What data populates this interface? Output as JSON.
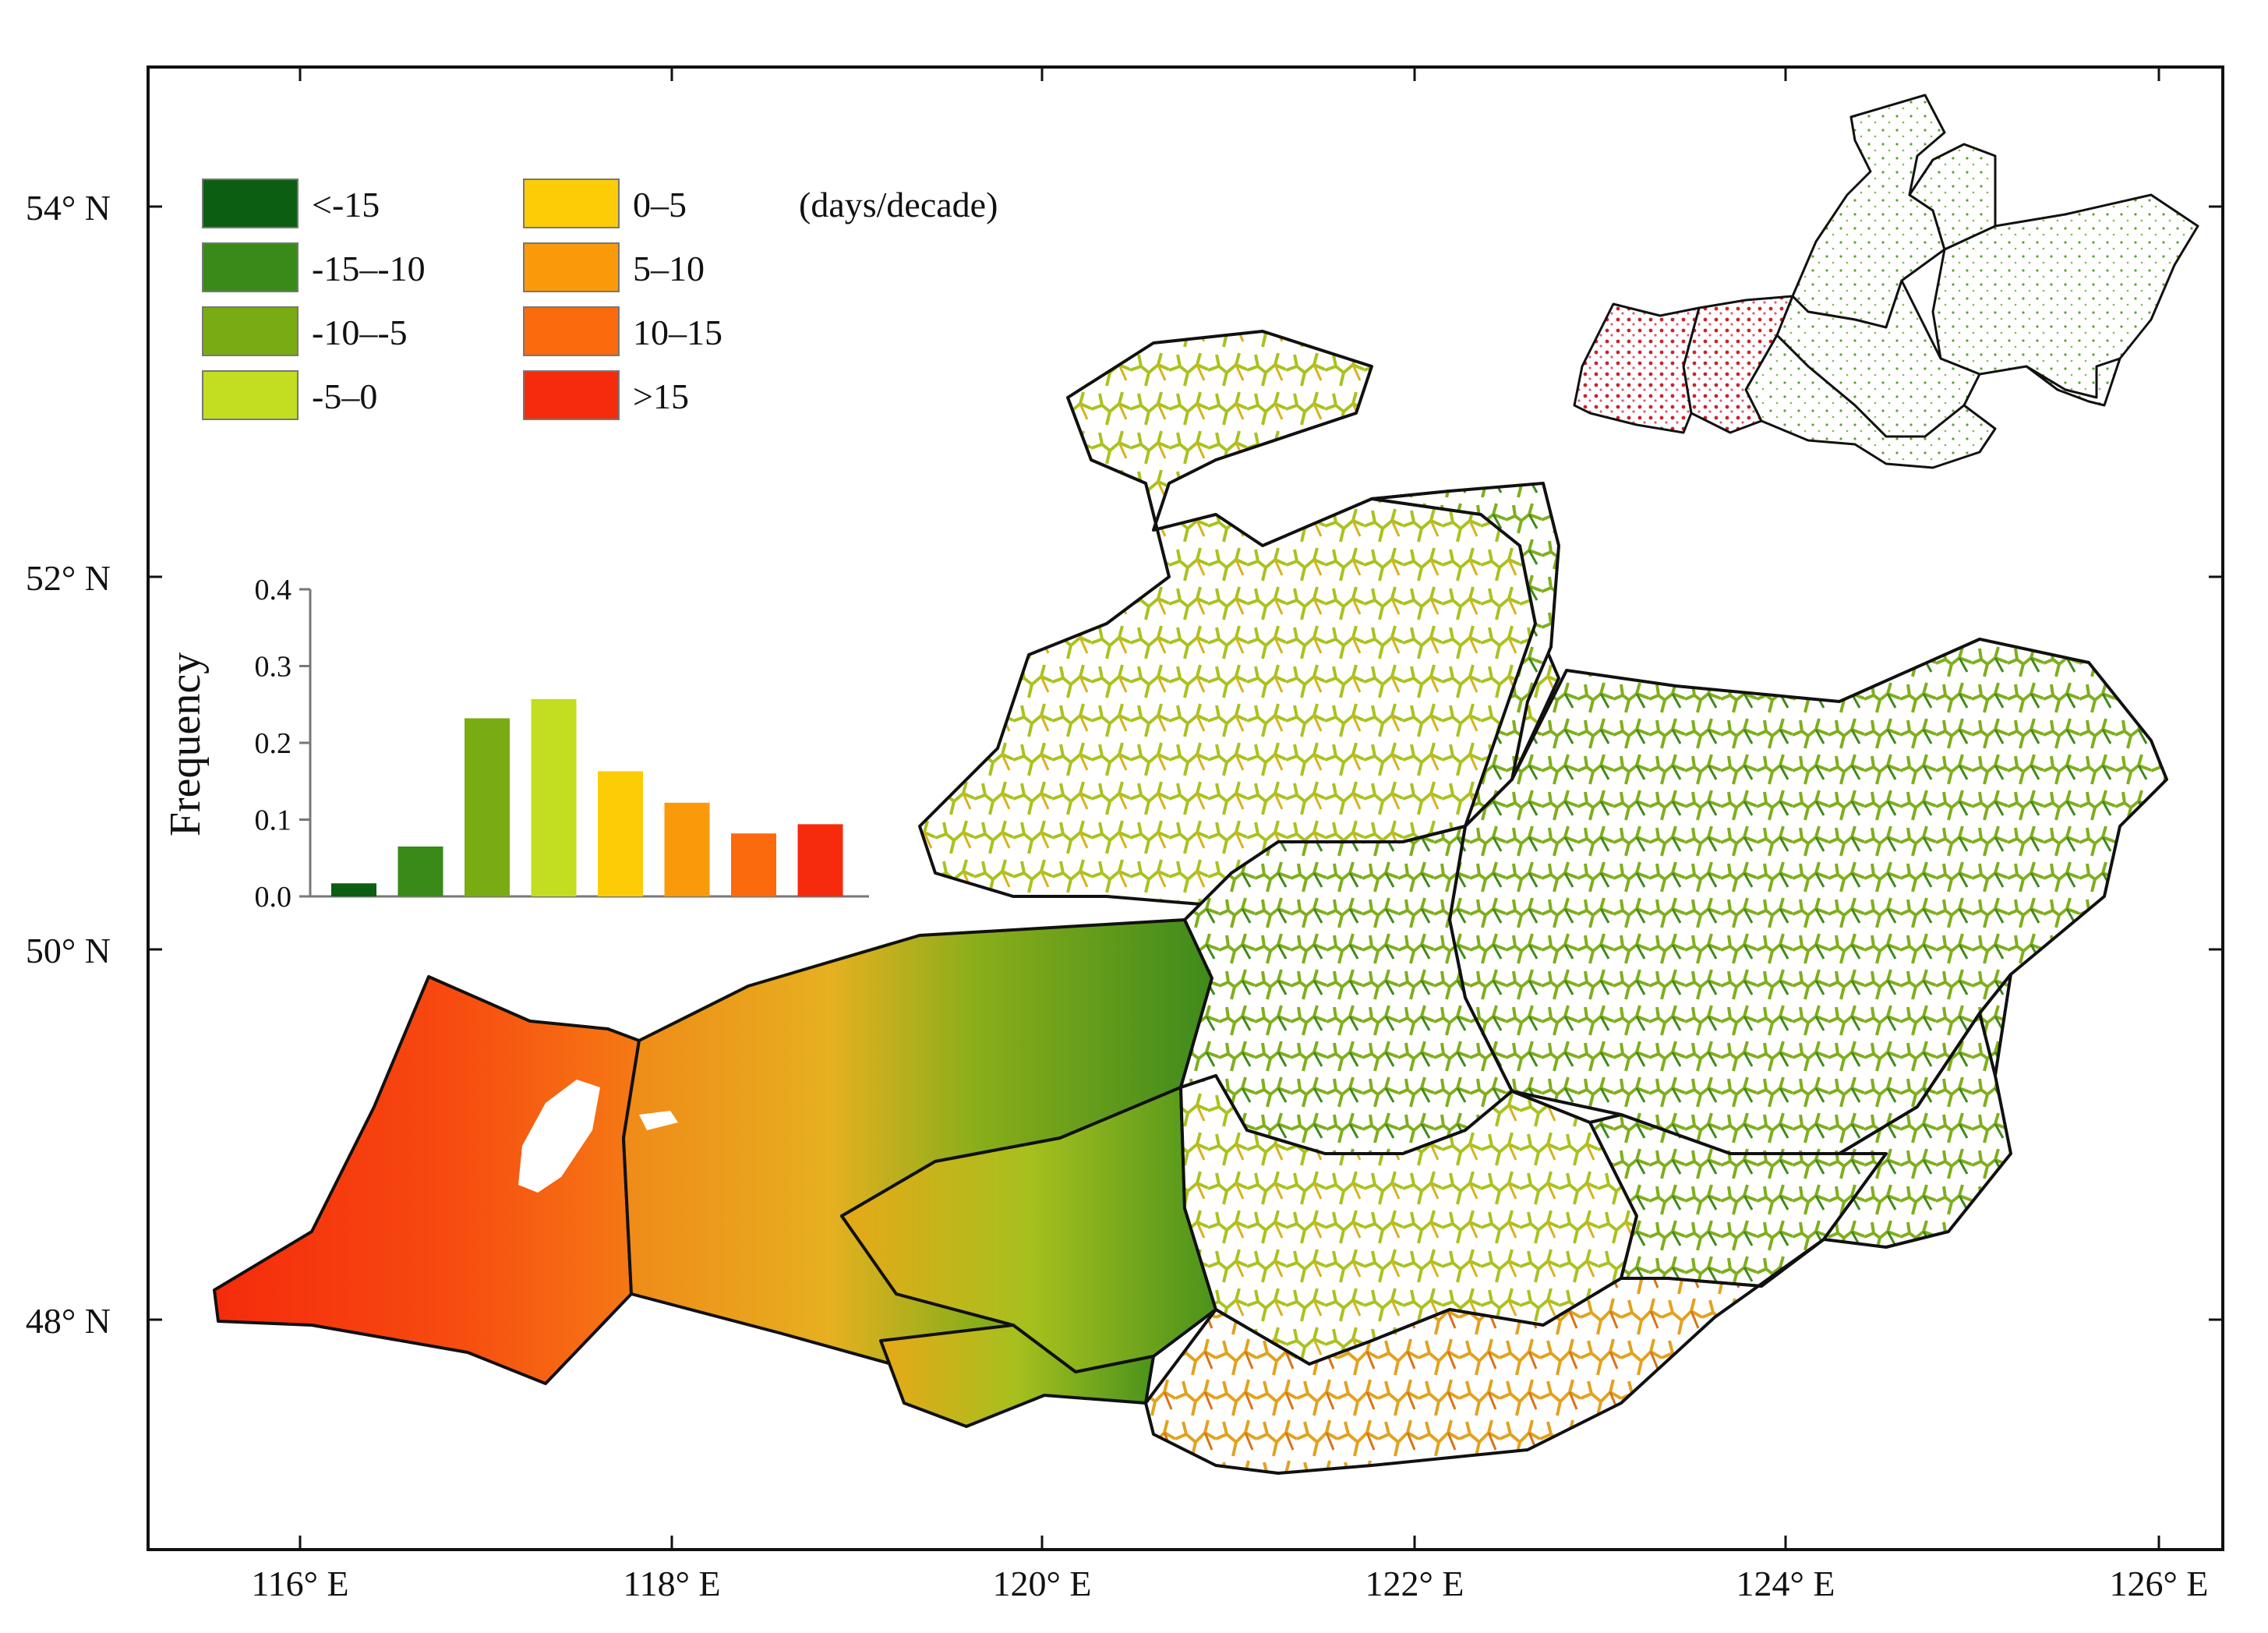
{
  "map": {
    "x_ticks": [
      "116° E",
      "118° E",
      "120° E",
      "122° E",
      "124° E",
      "126° E"
    ],
    "y_ticks": [
      "54° N",
      "52° N",
      "50° N",
      "48° N"
    ]
  },
  "legend": {
    "unit": "(days/decade)",
    "classes": [
      {
        "label": "<-15",
        "color": "#0b5e12"
      },
      {
        "label": "-15–-10",
        "color": "#3a8a1a"
      },
      {
        "label": "-10–-5",
        "color": "#78ac12"
      },
      {
        "label": "-5–0",
        "color": "#c3dd20"
      },
      {
        "label": "0–5",
        "color": "#fccc06"
      },
      {
        "label": "5–10",
        "color": "#fa9a0a"
      },
      {
        "label": "10–15",
        "color": "#fb6a0c"
      },
      {
        "label": ">15",
        "color": "#f52b0c"
      }
    ]
  },
  "chart_data": {
    "type": "bar",
    "ylabel": "Frequency",
    "ylim": [
      0,
      0.4
    ],
    "yticks": [
      "0.0",
      "0.1",
      "0.2",
      "0.3",
      "0.4"
    ],
    "categories": [
      "<-15",
      "-15–-10",
      "-10–-5",
      "-5–0",
      "0–5",
      "5–10",
      "10–15",
      ">15"
    ],
    "values": [
      0.017,
      0.065,
      0.232,
      0.257,
      0.163,
      0.122,
      0.082,
      0.094
    ],
    "colors": [
      "#0b5e12",
      "#3a8a1a",
      "#78ac12",
      "#c3dd20",
      "#fccc06",
      "#fa9a0a",
      "#fb6a0c",
      "#f52b0c"
    ]
  }
}
